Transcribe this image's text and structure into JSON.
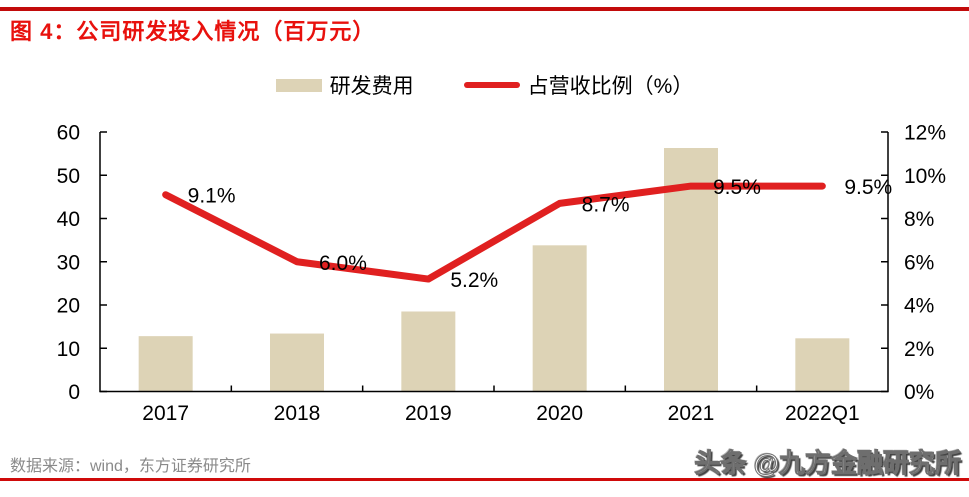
{
  "title": "图 4：公司研发投入情况（百万元）",
  "legend": {
    "bar_label": "研发费用",
    "line_label": "占营收比例（%）"
  },
  "footer": {
    "source": "数据来源：wind，东方证券研究所",
    "watermark": "头条 @九方金融研究所"
  },
  "colors": {
    "rule_red": "#c20b0b",
    "title_red": "#e8110d",
    "bar": "#ddd3b6",
    "line": "#e02020",
    "axis": "#000000",
    "source_gray": "#8a8a8a"
  },
  "chart_data": {
    "type": "bar",
    "title": "公司研发投入情况（百万元）",
    "categories": [
      "2017",
      "2018",
      "2019",
      "2020",
      "2021",
      "2022Q1"
    ],
    "series": [
      {
        "name": "研发费用",
        "type": "bar",
        "axis": "left",
        "values": [
          12.8,
          13.4,
          18.5,
          33.8,
          56.3,
          12.3
        ]
      },
      {
        "name": "占营收比例（%）",
        "type": "line",
        "axis": "right",
        "values": [
          9.1,
          6.0,
          5.2,
          8.7,
          9.5,
          9.5
        ],
        "point_labels": [
          "9.1%",
          "6.0%",
          "5.2%",
          "8.7%",
          "9.5%",
          "9.5%"
        ]
      }
    ],
    "left_axis": {
      "min": 0,
      "max": 60,
      "step": 10,
      "ticks": [
        "0",
        "10",
        "20",
        "30",
        "40",
        "50",
        "60"
      ]
    },
    "right_axis": {
      "min": 0,
      "max": 12,
      "step": 2,
      "ticks": [
        "0%",
        "2%",
        "4%",
        "6%",
        "8%",
        "10%",
        "12%"
      ]
    },
    "grid": false,
    "legend_position": "top"
  }
}
